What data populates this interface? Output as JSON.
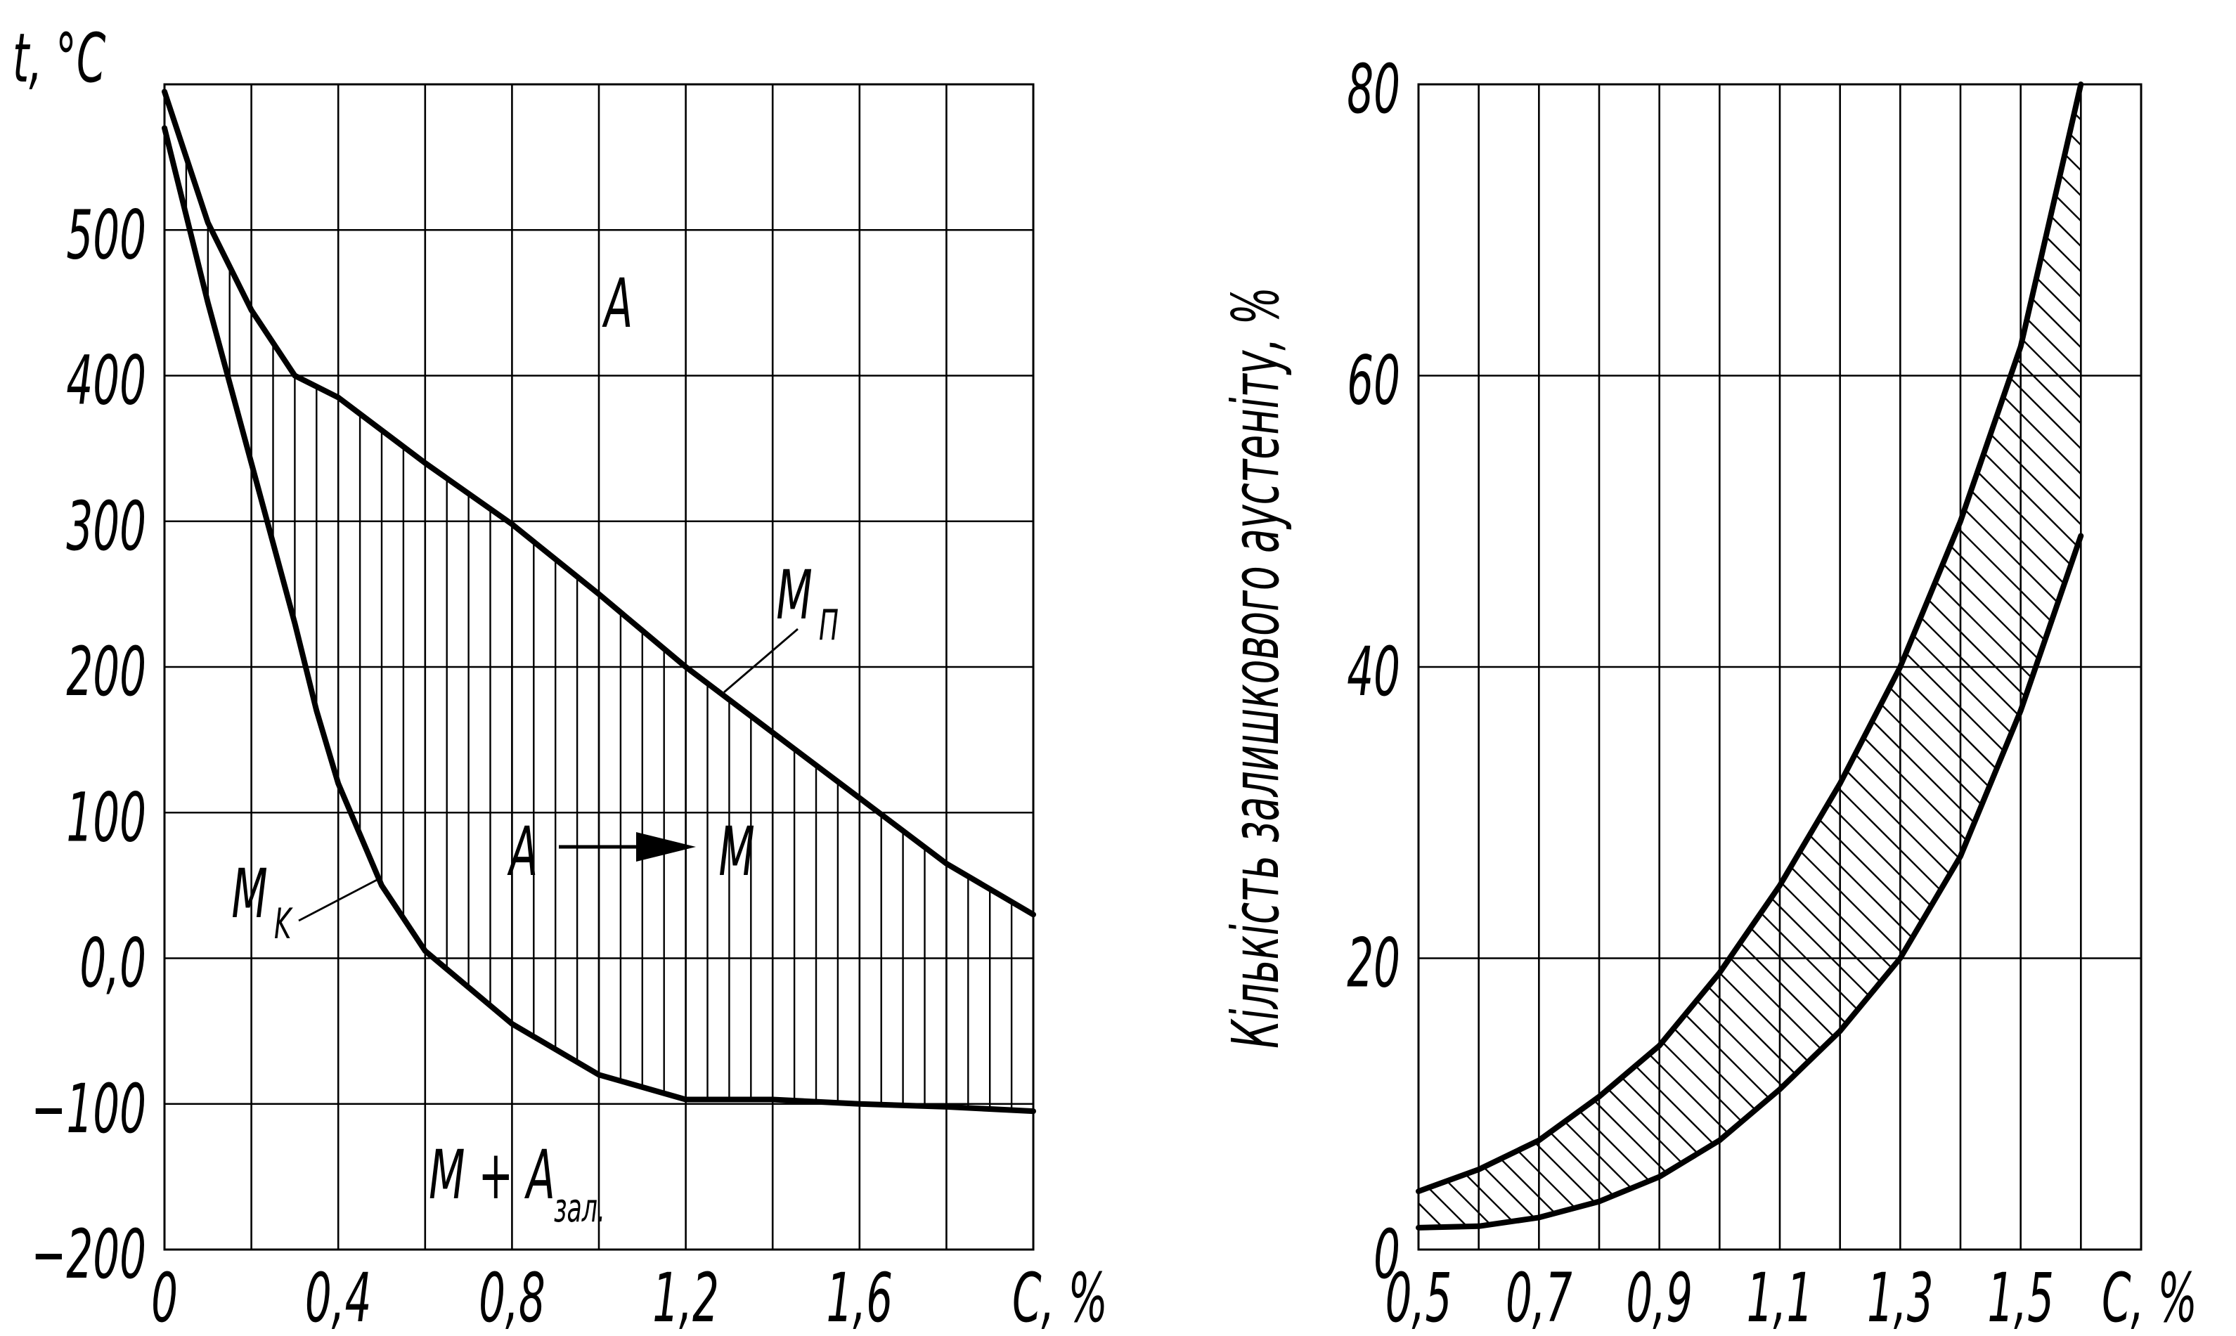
{
  "chart_data": [
    {
      "type": "line",
      "title": "",
      "xlabel": "С, %",
      "ylabel": "t, °C",
      "xlim": [
        0,
        2.0
      ],
      "ylim": [
        -200,
        600
      ],
      "grid": true,
      "x_ticks": [
        "0",
        "0,4",
        "0,8",
        "1,2",
        "1,6"
      ],
      "y_ticks": [
        "500",
        "400",
        "300",
        "200",
        "100",
        "0,0",
        "−100",
        "−200"
      ],
      "y_tick_values": [
        500,
        400,
        300,
        200,
        100,
        0,
        -100,
        -200
      ],
      "x_tick_values": [
        0,
        0.4,
        0.8,
        1.2,
        1.6
      ],
      "series": [
        {
          "name": "Mп",
          "x": [
            0,
            0.1,
            0.2,
            0.3,
            0.4,
            0.6,
            0.8,
            1.0,
            1.2,
            1.4,
            1.6,
            1.8,
            2.0
          ],
          "values": [
            595,
            505,
            445,
            400,
            385,
            340,
            298,
            250,
            200,
            155,
            110,
            65,
            30
          ]
        },
        {
          "name": "Mк",
          "x": [
            0,
            0.1,
            0.2,
            0.3,
            0.35,
            0.4,
            0.5,
            0.6,
            0.8,
            1.0,
            1.2,
            1.4,
            1.6,
            1.8,
            2.0
          ],
          "values": [
            570,
            450,
            340,
            230,
            170,
            120,
            50,
            5,
            -45,
            -80,
            -97,
            -97,
            -100,
            -102,
            -105
          ]
        }
      ],
      "annotations": {
        "region_austenite": "A",
        "region_transform_left": "A",
        "region_transform_right": "M",
        "region_mixed_main": "M + A",
        "region_mixed_sub": "зал.",
        "label_mp_main": "M",
        "label_mp_sub": "П",
        "label_mk_main": "M",
        "label_mk_sub": "K"
      }
    },
    {
      "type": "area",
      "title": "",
      "xlabel": "С, %",
      "ylabel": "Кількість залишкового аустеніту, %",
      "xlim": [
        0.5,
        1.7
      ],
      "ylim": [
        0,
        80
      ],
      "grid": true,
      "x_ticks": [
        "0,5",
        "0,7",
        "0,9",
        "1,1",
        "1,3",
        "1,5"
      ],
      "x_tick_values": [
        0.5,
        0.7,
        0.9,
        1.1,
        1.3,
        1.5
      ],
      "y_ticks": [
        "80",
        "60",
        "40",
        "20",
        "0"
      ],
      "y_tick_values": [
        80,
        60,
        40,
        20,
        0
      ],
      "series": [
        {
          "name": "upper",
          "x": [
            0.5,
            0.6,
            0.7,
            0.8,
            0.9,
            1.0,
            1.1,
            1.2,
            1.3,
            1.4,
            1.5,
            1.6
          ],
          "values": [
            4,
            5.5,
            7.5,
            10.5,
            14,
            19,
            25,
            32,
            40,
            50,
            62,
            80
          ]
        },
        {
          "name": "lower",
          "x": [
            0.5,
            0.6,
            0.7,
            0.8,
            0.9,
            1.0,
            1.1,
            1.2,
            1.3,
            1.4,
            1.5,
            1.6
          ],
          "values": [
            1.5,
            1.6,
            2.2,
            3.3,
            5,
            7.5,
            11,
            15,
            20,
            27,
            37,
            49
          ]
        }
      ]
    }
  ]
}
